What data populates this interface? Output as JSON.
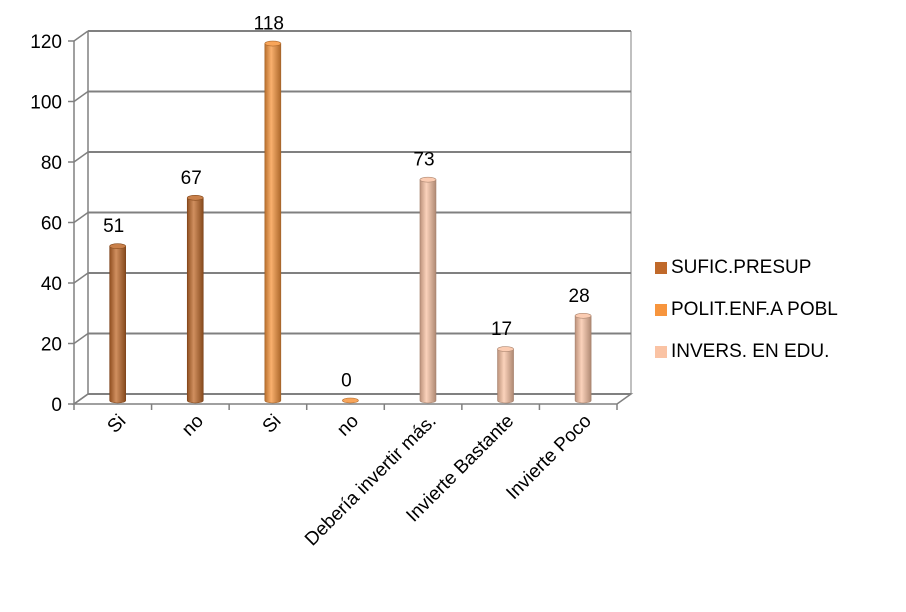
{
  "chart_data": {
    "type": "bar",
    "categories": [
      "Si",
      "no",
      "Si",
      "no",
      "Debería invertir más.",
      "Invierte Bastante",
      "Invierte Poco"
    ],
    "series": [
      {
        "name": "SUFIC.PRESUP",
        "color": "#c0692a",
        "values": [
          51,
          67,
          null,
          null,
          null,
          null,
          null
        ]
      },
      {
        "name": "POLIT.ENF.A POBL",
        "color": "#f7953d",
        "values": [
          null,
          null,
          118,
          0,
          null,
          null,
          null
        ]
      },
      {
        "name": "INVERS. EN EDU.",
        "color": "#fac3a4",
        "values": [
          null,
          null,
          null,
          null,
          73,
          17,
          28
        ]
      }
    ],
    "ylim": [
      0,
      120
    ],
    "yticks": [
      0,
      20,
      40,
      60,
      80,
      100,
      120
    ],
    "grid": true,
    "legend_position": "right"
  }
}
